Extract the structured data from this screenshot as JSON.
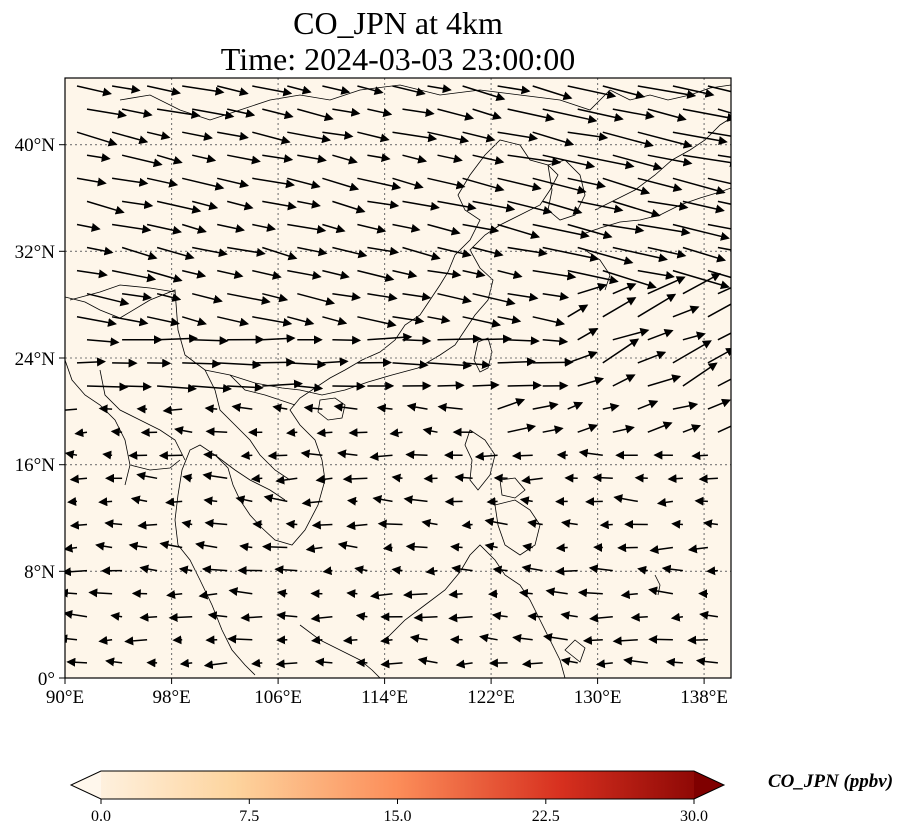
{
  "title": {
    "line1": "CO_JPN at 4km",
    "line2": "Time: 2024-03-03 23:00:00"
  },
  "map": {
    "lon_range": [
      90,
      140
    ],
    "lat_range": [
      0,
      45
    ],
    "x_ticks": [
      "90°E",
      "98°E",
      "106°E",
      "114°E",
      "122°E",
      "130°E",
      "138°E"
    ],
    "y_ticks": [
      "0°",
      "8°N",
      "16°N",
      "24°N",
      "32°N",
      "40°N"
    ],
    "x_tick_values": [
      90,
      98,
      106,
      114,
      122,
      130,
      138
    ],
    "y_tick_values": [
      0,
      8,
      16,
      24,
      32,
      40
    ],
    "grid": true,
    "field_color": "#fef6ea",
    "vectors": "wind arrows (westerlies north of ~20°N, easterlies to the south)"
  },
  "colorbar": {
    "label": "CO_JPN (ppbv)",
    "ticks": [
      "0.0",
      "7.5",
      "15.0",
      "22.5",
      "30.0"
    ],
    "tick_values": [
      0,
      7.5,
      15,
      22.5,
      30
    ],
    "range": [
      0,
      30
    ],
    "colormap": "OrRd",
    "colors": [
      "#fff7ec",
      "#fdd49e",
      "#fc8d59",
      "#d7301f",
      "#7f0000"
    ]
  }
}
